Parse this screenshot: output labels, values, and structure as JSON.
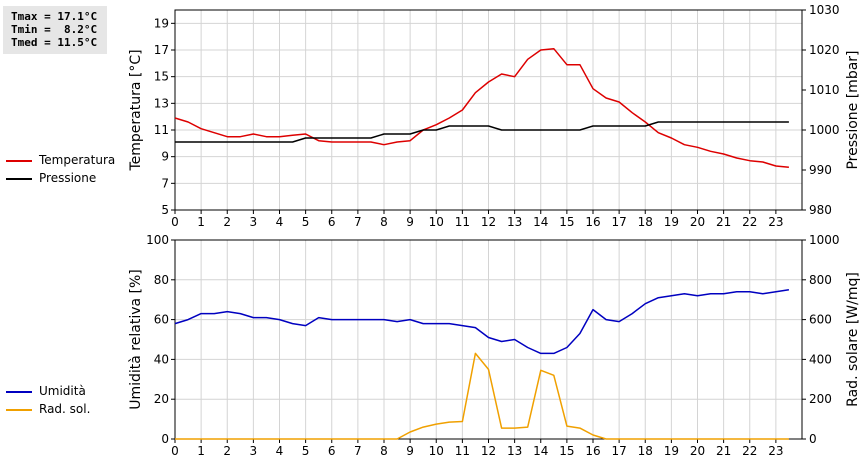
{
  "stats": {
    "tmax": "Tmax = 17.1°C",
    "tmin": "Tmin =  8.2°C",
    "tmed": "Tmed = 11.5°C"
  },
  "legend_top": [
    {
      "label": "Temperatura",
      "color": "#dd0000"
    },
    {
      "label": "Pressione",
      "color": "#000000"
    }
  ],
  "legend_bottom": [
    {
      "label": "Umidità",
      "color": "#0000c0"
    },
    {
      "label": "Rad. sol.",
      "color": "#f0a000"
    }
  ],
  "chart_data": [
    {
      "type": "line",
      "xlim": [
        0,
        24
      ],
      "x_ticks": [
        "0",
        "1",
        "2",
        "3",
        "4",
        "5",
        "6",
        "7",
        "8",
        "9",
        "10",
        "11",
        "12",
        "13",
        "14",
        "15",
        "16",
        "17",
        "18",
        "19",
        "20",
        "21",
        "22",
        "23"
      ],
      "ylabel_left": "Temperatura [°C]",
      "ylabel_right": "Pressione [mbar]",
      "ylim_left": [
        5,
        20
      ],
      "ylim_right": [
        980,
        1030
      ],
      "y_ticks_left": [
        "5",
        "7",
        "9",
        "11",
        "13",
        "15",
        "17",
        "19"
      ],
      "y_ticks_right": [
        "980",
        "990",
        "1000",
        "1010",
        "1020",
        "1030"
      ],
      "grid": true,
      "series": [
        {
          "name": "Temperatura",
          "axis": "left",
          "color": "#dd0000",
          "x": [
            0,
            0.5,
            1,
            1.5,
            2,
            2.5,
            3,
            3.5,
            4,
            4.5,
            5,
            5.5,
            6,
            6.5,
            7,
            7.5,
            8,
            8.5,
            9,
            9.5,
            10,
            10.5,
            11,
            11.5,
            12,
            12.5,
            13,
            13.5,
            14,
            14.5,
            15,
            15.5,
            16,
            16.5,
            17,
            17.5,
            18,
            18.5,
            19,
            19.5,
            20,
            20.5,
            21,
            21.5,
            22,
            22.5,
            23,
            23.5
          ],
          "y": [
            11.9,
            11.6,
            11.1,
            10.8,
            10.5,
            10.5,
            10.7,
            10.5,
            10.5,
            10.6,
            10.7,
            10.2,
            10.1,
            10.1,
            10.1,
            10.1,
            9.9,
            10.1,
            10.2,
            11.0,
            11.4,
            11.9,
            12.5,
            13.8,
            14.6,
            15.2,
            15.0,
            16.3,
            17.0,
            17.1,
            15.9,
            15.9,
            14.1,
            13.4,
            13.1,
            12.3,
            11.6,
            10.8,
            10.4,
            9.9,
            9.7,
            9.4,
            9.2,
            8.9,
            8.7,
            8.6,
            8.3,
            8.2
          ]
        },
        {
          "name": "Pressione",
          "axis": "right",
          "color": "#000000",
          "x": [
            0,
            4.5,
            5,
            7.5,
            8,
            9,
            9.5,
            10,
            10.5,
            12,
            12.5,
            15,
            15.5,
            16,
            18,
            18.5,
            23.5
          ],
          "y": [
            997,
            997,
            998,
            998,
            999,
            999,
            1000,
            1000,
            1001,
            1001,
            1000,
            1000,
            1000,
            1001,
            1001,
            1002,
            1002
          ]
        }
      ]
    },
    {
      "type": "line",
      "xlim": [
        0,
        24
      ],
      "x_ticks": [
        "0",
        "1",
        "2",
        "3",
        "4",
        "5",
        "6",
        "7",
        "8",
        "9",
        "10",
        "11",
        "12",
        "13",
        "14",
        "15",
        "16",
        "17",
        "18",
        "19",
        "20",
        "21",
        "22",
        "23"
      ],
      "ylabel_left": "Umidità relativa [%]",
      "ylabel_right": "Rad. solare [W/mq]",
      "ylim_left": [
        0,
        100
      ],
      "ylim_right": [
        0,
        1000
      ],
      "y_ticks_left": [
        "0",
        "20",
        "40",
        "60",
        "80",
        "100"
      ],
      "y_ticks_right": [
        "0",
        "200",
        "400",
        "600",
        "800",
        "1000"
      ],
      "grid": true,
      "series": [
        {
          "name": "Umidità",
          "axis": "left",
          "color": "#0000c0",
          "x": [
            0,
            0.5,
            1,
            1.5,
            2,
            2.5,
            3,
            3.5,
            4,
            4.5,
            5,
            5.5,
            6,
            6.5,
            7,
            7.5,
            8,
            8.5,
            9,
            9.5,
            10,
            10.5,
            11,
            11.5,
            12,
            12.5,
            13,
            13.5,
            14,
            14.5,
            15,
            15.5,
            16,
            16.5,
            17,
            17.5,
            18,
            18.5,
            19,
            19.5,
            20,
            20.5,
            21,
            21.5,
            22,
            22.5,
            23,
            23.5
          ],
          "y": [
            58,
            60,
            63,
            63,
            64,
            63,
            61,
            61,
            60,
            58,
            57,
            61,
            60,
            60,
            60,
            60,
            60,
            59,
            60,
            58,
            58,
            58,
            57,
            56,
            51,
            49,
            50,
            46,
            43,
            43,
            46,
            53,
            65,
            60,
            59,
            63,
            68,
            71,
            72,
            73,
            72,
            73,
            73,
            74,
            74,
            73,
            74,
            75
          ]
        },
        {
          "name": "Rad. sol.",
          "axis": "right",
          "color": "#f0a000",
          "x": [
            0,
            8,
            8.5,
            9,
            9.5,
            10,
            10.5,
            11,
            11.5,
            12,
            12.5,
            13,
            13.5,
            14,
            14.5,
            15,
            15.5,
            16,
            16.5,
            17,
            23.5
          ],
          "y": [
            0,
            0,
            0,
            35,
            60,
            75,
            85,
            88,
            430,
            350,
            55,
            55,
            60,
            345,
            320,
            65,
            55,
            20,
            0,
            0,
            0
          ]
        }
      ]
    }
  ]
}
